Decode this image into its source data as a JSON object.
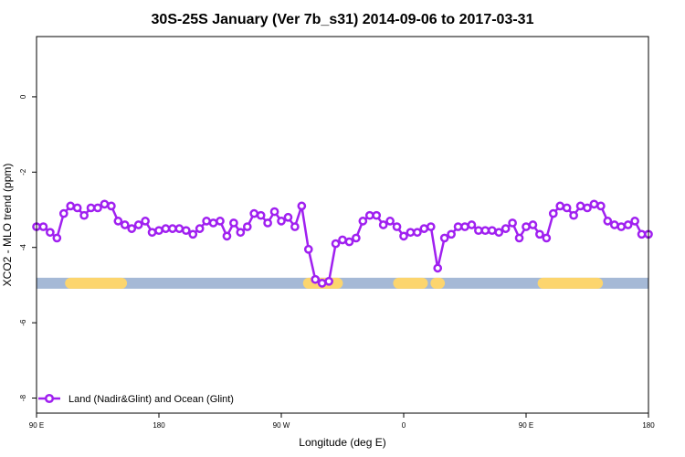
{
  "chart_data": {
    "type": "line",
    "title": "30S-25S January (Ver 7b_s31)   2014-09-06 to 2017-03-31",
    "xlabel": "Longitude (deg E)",
    "ylabel": "XCO2 - MLO trend (ppm)",
    "xlim": [
      -90,
      270
    ],
    "ylim": [
      -8.4,
      1.6
    ],
    "x_ticks": [
      -90,
      -18,
      54,
      126,
      198,
      270
    ],
    "x_tick_labels": [
      "90 E",
      "180",
      "90 W",
      "0",
      "90 E",
      "180"
    ],
    "y_ticks": [
      0,
      -2,
      -4,
      -6,
      -8
    ],
    "y_tick_labels": [
      "0",
      "-2",
      "-4",
      "-6",
      "-8"
    ],
    "grid": false,
    "legend_position": "bottom-left",
    "series": [
      {
        "name": "Land (Nadir&Glint) and Ocean (Glint)",
        "color": "#a020f0",
        "x": [
          -90,
          -86,
          -82,
          -78,
          -74,
          -70,
          -66,
          -62,
          -58,
          -54,
          -50,
          -46,
          -42,
          -38,
          -34,
          -30,
          -26,
          -22,
          -18,
          -14,
          -10,
          -6,
          -2,
          2,
          6,
          10,
          14,
          18,
          22,
          26,
          30,
          34,
          38,
          42,
          46,
          50,
          54,
          58,
          62,
          66,
          70,
          74,
          78,
          82,
          86,
          90,
          94,
          98,
          102,
          106,
          110,
          114,
          118,
          122,
          126,
          130,
          134,
          138,
          142,
          146,
          150,
          154,
          158,
          162,
          166,
          170,
          174,
          178,
          182,
          186,
          190,
          194,
          198,
          202,
          206,
          210,
          214,
          218,
          222,
          226,
          230,
          234,
          238,
          242,
          246,
          250,
          254,
          258,
          262,
          266,
          270
        ],
        "y": [
          -3.45,
          -3.45,
          -3.6,
          -3.75,
          -3.1,
          -2.9,
          -2.95,
          -3.15,
          -2.95,
          -2.95,
          -2.85,
          -2.9,
          -3.3,
          -3.4,
          -3.5,
          -3.4,
          -3.3,
          -3.6,
          -3.55,
          -3.5,
          -3.5,
          -3.5,
          -3.55,
          -3.65,
          -3.5,
          -3.3,
          -3.35,
          -3.3,
          -3.7,
          -3.35,
          -3.6,
          -3.45,
          -3.1,
          -3.15,
          -3.35,
          -3.05,
          -3.3,
          -3.2,
          -3.45,
          -2.9,
          -4.05,
          -4.85,
          -4.95,
          -4.9,
          -3.9,
          -3.8,
          -3.85,
          -3.75,
          -3.3,
          -3.15,
          -3.15,
          -3.4,
          -3.3,
          -3.45,
          -3.7,
          -3.6,
          -3.6,
          -3.5,
          -3.45,
          -4.55,
          -3.75,
          -3.65,
          -3.45,
          -3.45,
          -3.4,
          -3.55,
          -3.55,
          -3.55,
          -3.6,
          -3.5,
          -3.35,
          -3.75,
          -3.45,
          -3.4,
          -3.65,
          -3.75,
          -3.1,
          -2.9,
          -2.95,
          -3.15,
          -2.9,
          -2.95,
          -2.85,
          -2.9,
          -3.3,
          -3.4,
          -3.45,
          -3.4,
          -3.3,
          -3.65,
          -3.65
        ]
      }
    ],
    "surface_band": {
      "y": -4.95,
      "ocean_color": "#a5b9d6",
      "land_color": "#fcd56e",
      "land_segments": [
        [
          -70,
          -40
        ],
        [
          70,
          82
        ],
        [
          83,
          87
        ],
        [
          123,
          137
        ],
        [
          145,
          147
        ],
        [
          208,
          240
        ]
      ]
    }
  }
}
